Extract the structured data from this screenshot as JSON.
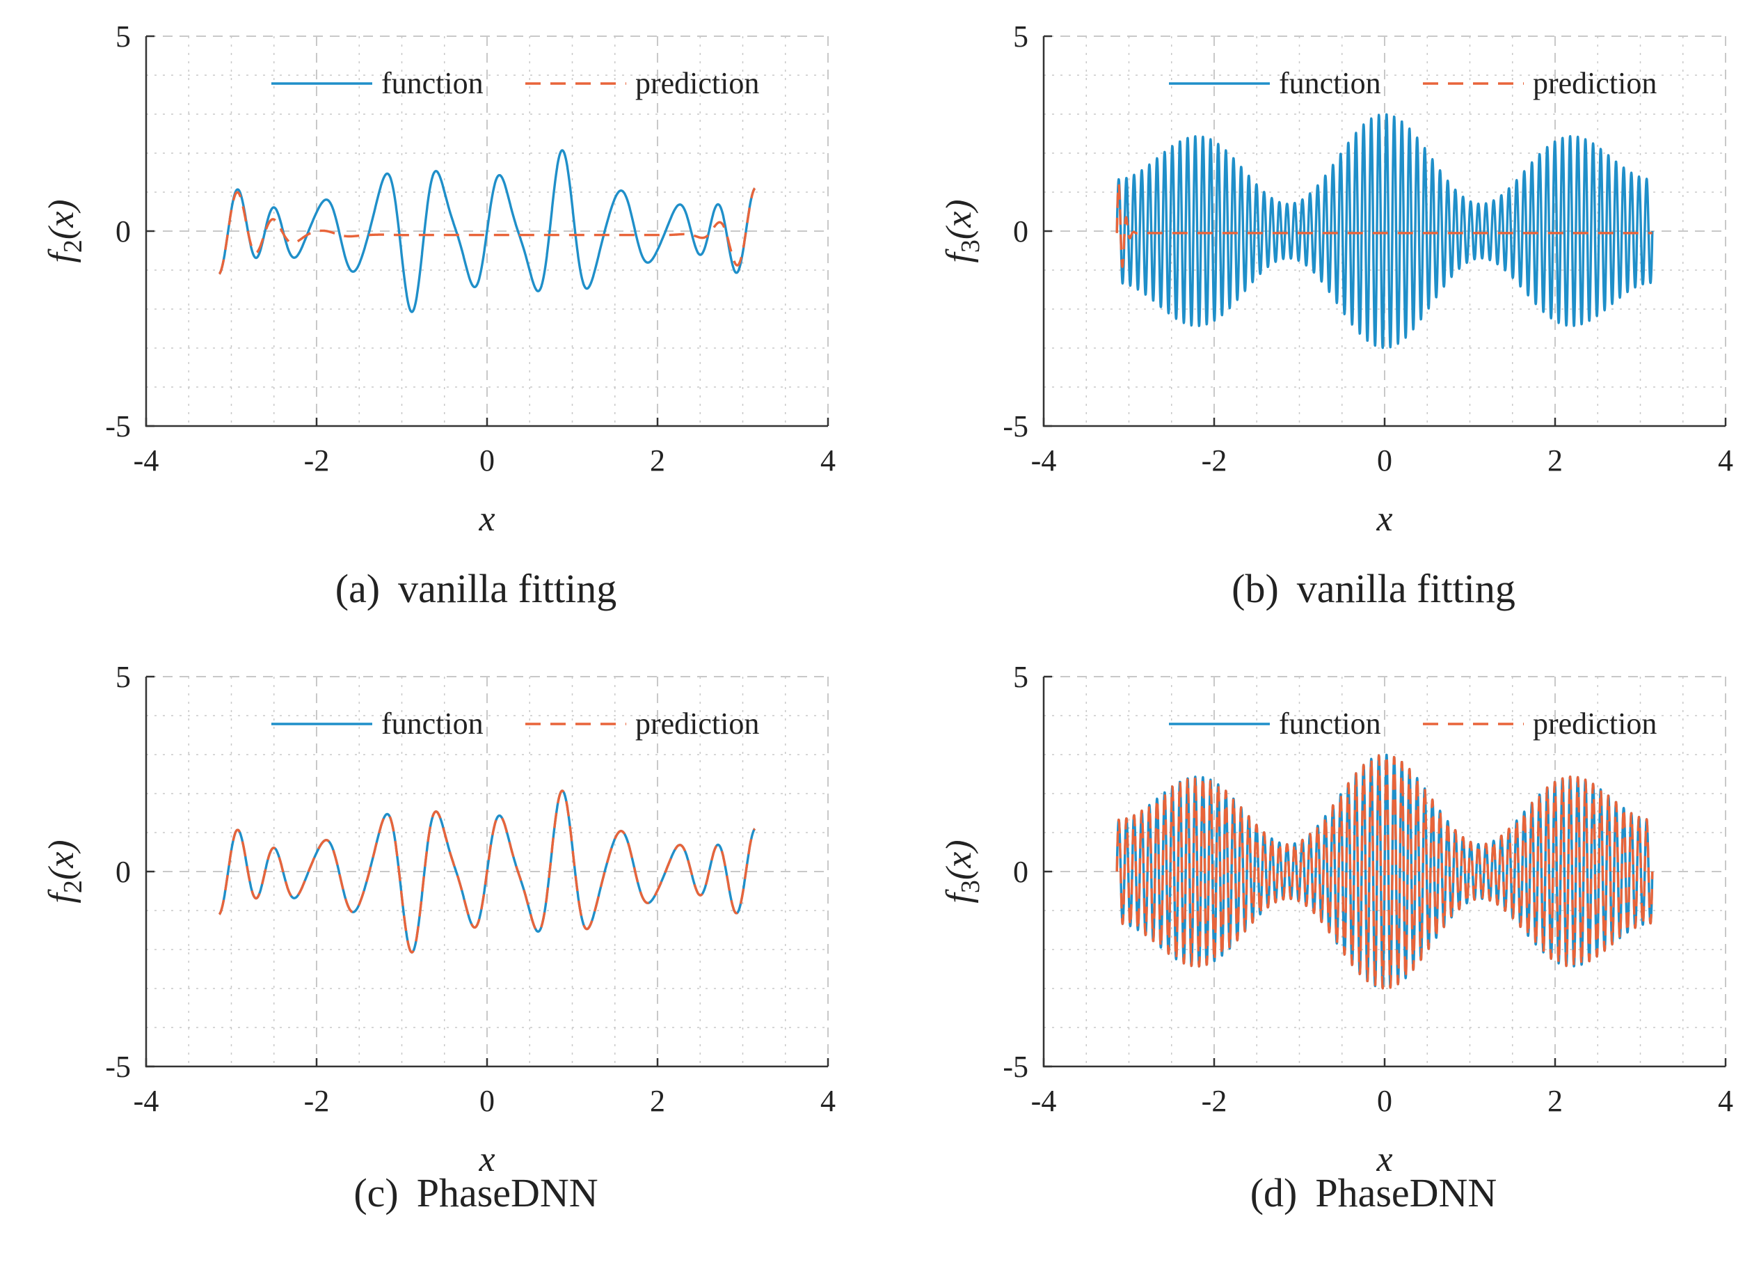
{
  "colors": {
    "function": "#1f8fc9",
    "prediction": "#e8643a",
    "grid": "#c8c8c8",
    "axis": "#333333"
  },
  "chart_data": [
    {
      "id": "a",
      "type": "line",
      "caption_tag": "(a)",
      "caption_text": "vanilla fitting",
      "xlabel": "x",
      "ylabel_base": "f",
      "ylabel_sub": "2",
      "ylabel_arg": "(x)",
      "xlim": [
        -4,
        4
      ],
      "ylim": [
        -5,
        5
      ],
      "xticks": [
        "-4",
        "-2",
        "0",
        "2",
        "4"
      ],
      "yticks": [
        "-5",
        "0",
        "5"
      ],
      "grid": true,
      "legend_position": "top-right",
      "series": [
        {
          "name": "function",
          "style": "solid",
          "fn": "f2"
        },
        {
          "name": "prediction",
          "style": "dashed",
          "fn": "f2_vanilla"
        }
      ]
    },
    {
      "id": "b",
      "type": "line",
      "caption_tag": "(b)",
      "caption_text": "vanilla fitting",
      "xlabel": "x",
      "ylabel_base": "f",
      "ylabel_sub": "3",
      "ylabel_arg": "(x)",
      "xlim": [
        -4,
        4
      ],
      "ylim": [
        -5,
        5
      ],
      "xticks": [
        "-4",
        "-2",
        "0",
        "2",
        "4"
      ],
      "yticks": [
        "-5",
        "0",
        "5"
      ],
      "grid": true,
      "legend_position": "top-right",
      "series": [
        {
          "name": "function",
          "style": "solid",
          "fn": "f3"
        },
        {
          "name": "prediction",
          "style": "dashed",
          "fn": "f3_vanilla"
        }
      ]
    },
    {
      "id": "c",
      "type": "line",
      "caption_tag": "(c)",
      "caption_text": "PhaseDNN",
      "xlabel": "x",
      "ylabel_base": "f",
      "ylabel_sub": "2",
      "ylabel_arg": "(x)",
      "xlim": [
        -4,
        4
      ],
      "ylim": [
        -5,
        5
      ],
      "xticks": [
        "-4",
        "-2",
        "0",
        "2",
        "4"
      ],
      "yticks": [
        "-5",
        "0",
        "5"
      ],
      "grid": true,
      "legend_position": "top-right",
      "series": [
        {
          "name": "function",
          "style": "solid",
          "fn": "f2"
        },
        {
          "name": "prediction",
          "style": "dashed",
          "fn": "f2"
        }
      ]
    },
    {
      "id": "d",
      "type": "line",
      "caption_tag": "(d)",
      "caption_text": "PhaseDNN",
      "xlabel": "x",
      "ylabel_base": "f",
      "ylabel_sub": "3",
      "ylabel_arg": "(x)",
      "xlim": [
        -4,
        4
      ],
      "ylim": [
        -5,
        5
      ],
      "xticks": [
        "-4",
        "-2",
        "0",
        "2",
        "4"
      ],
      "yticks": [
        "-5",
        "0",
        "5"
      ],
      "grid": true,
      "legend_position": "top-right",
      "series": [
        {
          "name": "function",
          "style": "solid",
          "fn": "f3"
        },
        {
          "name": "prediction",
          "style": "dashed",
          "fn": "f3"
        }
      ]
    }
  ]
}
